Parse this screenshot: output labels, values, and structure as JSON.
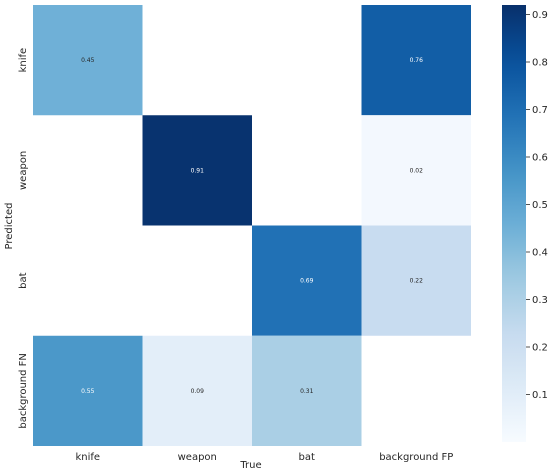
{
  "chart_data": {
    "type": "heatmap",
    "title": "",
    "xlabel": "True",
    "ylabel": "Predicted",
    "x_categories": [
      "knife",
      "weapon",
      "bat",
      "background FP"
    ],
    "y_categories": [
      "knife",
      "weapon",
      "bat",
      "background FN"
    ],
    "values": [
      [
        0.45,
        null,
        null,
        0.76
      ],
      [
        null,
        0.91,
        null,
        0.02
      ],
      [
        null,
        null,
        0.69,
        0.22
      ],
      [
        0.55,
        0.09,
        0.31,
        null
      ]
    ],
    "colorbar": {
      "range": [
        0.0,
        0.92
      ],
      "ticks": [
        "0.1",
        "0.2",
        "0.3",
        "0.4",
        "0.5",
        "0.6",
        "0.7",
        "0.8",
        "0.9"
      ],
      "colormap": "Blues"
    }
  }
}
